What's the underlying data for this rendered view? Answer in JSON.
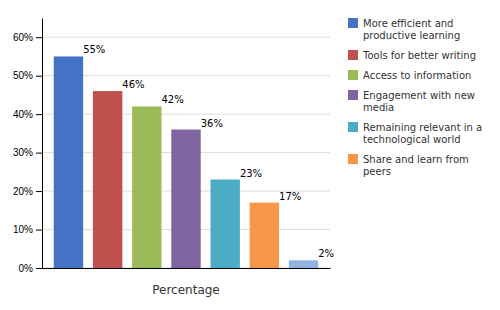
{
  "chart_data": {
    "type": "bar",
    "categories": [
      "More efficient and\nproductive learning",
      "Tools for better writing",
      "Access to information",
      "Engagement with new\nmedia",
      "Remaining relevant in a\ntechnological world",
      "Share and learn from\npeers",
      null
    ],
    "values": [
      55,
      46,
      42,
      36,
      23,
      17,
      2
    ],
    "value_labels": [
      "55%",
      "46%",
      "42%",
      "36%",
      "23%",
      "17%",
      "2%"
    ],
    "data_labels": true,
    "colors": [
      "#4472C4",
      "#C0504D",
      "#9BBB59",
      "#8064A2",
      "#4BACC6",
      "#F79646",
      "#8DB4E2"
    ],
    "xlabel": "Percentage",
    "ylim": [
      0,
      65
    ],
    "yticks": [
      {
        "value": 0,
        "label": "0%"
      },
      {
        "value": 10,
        "label": "10%"
      },
      {
        "value": 20,
        "label": "20%"
      },
      {
        "value": 30,
        "label": "30%"
      },
      {
        "value": 40,
        "label": "40%"
      },
      {
        "value": 50,
        "label": "50%"
      },
      {
        "value": 60,
        "label": "60%"
      }
    ],
    "grid": true,
    "legend": "right",
    "tick_labels": "y"
  }
}
